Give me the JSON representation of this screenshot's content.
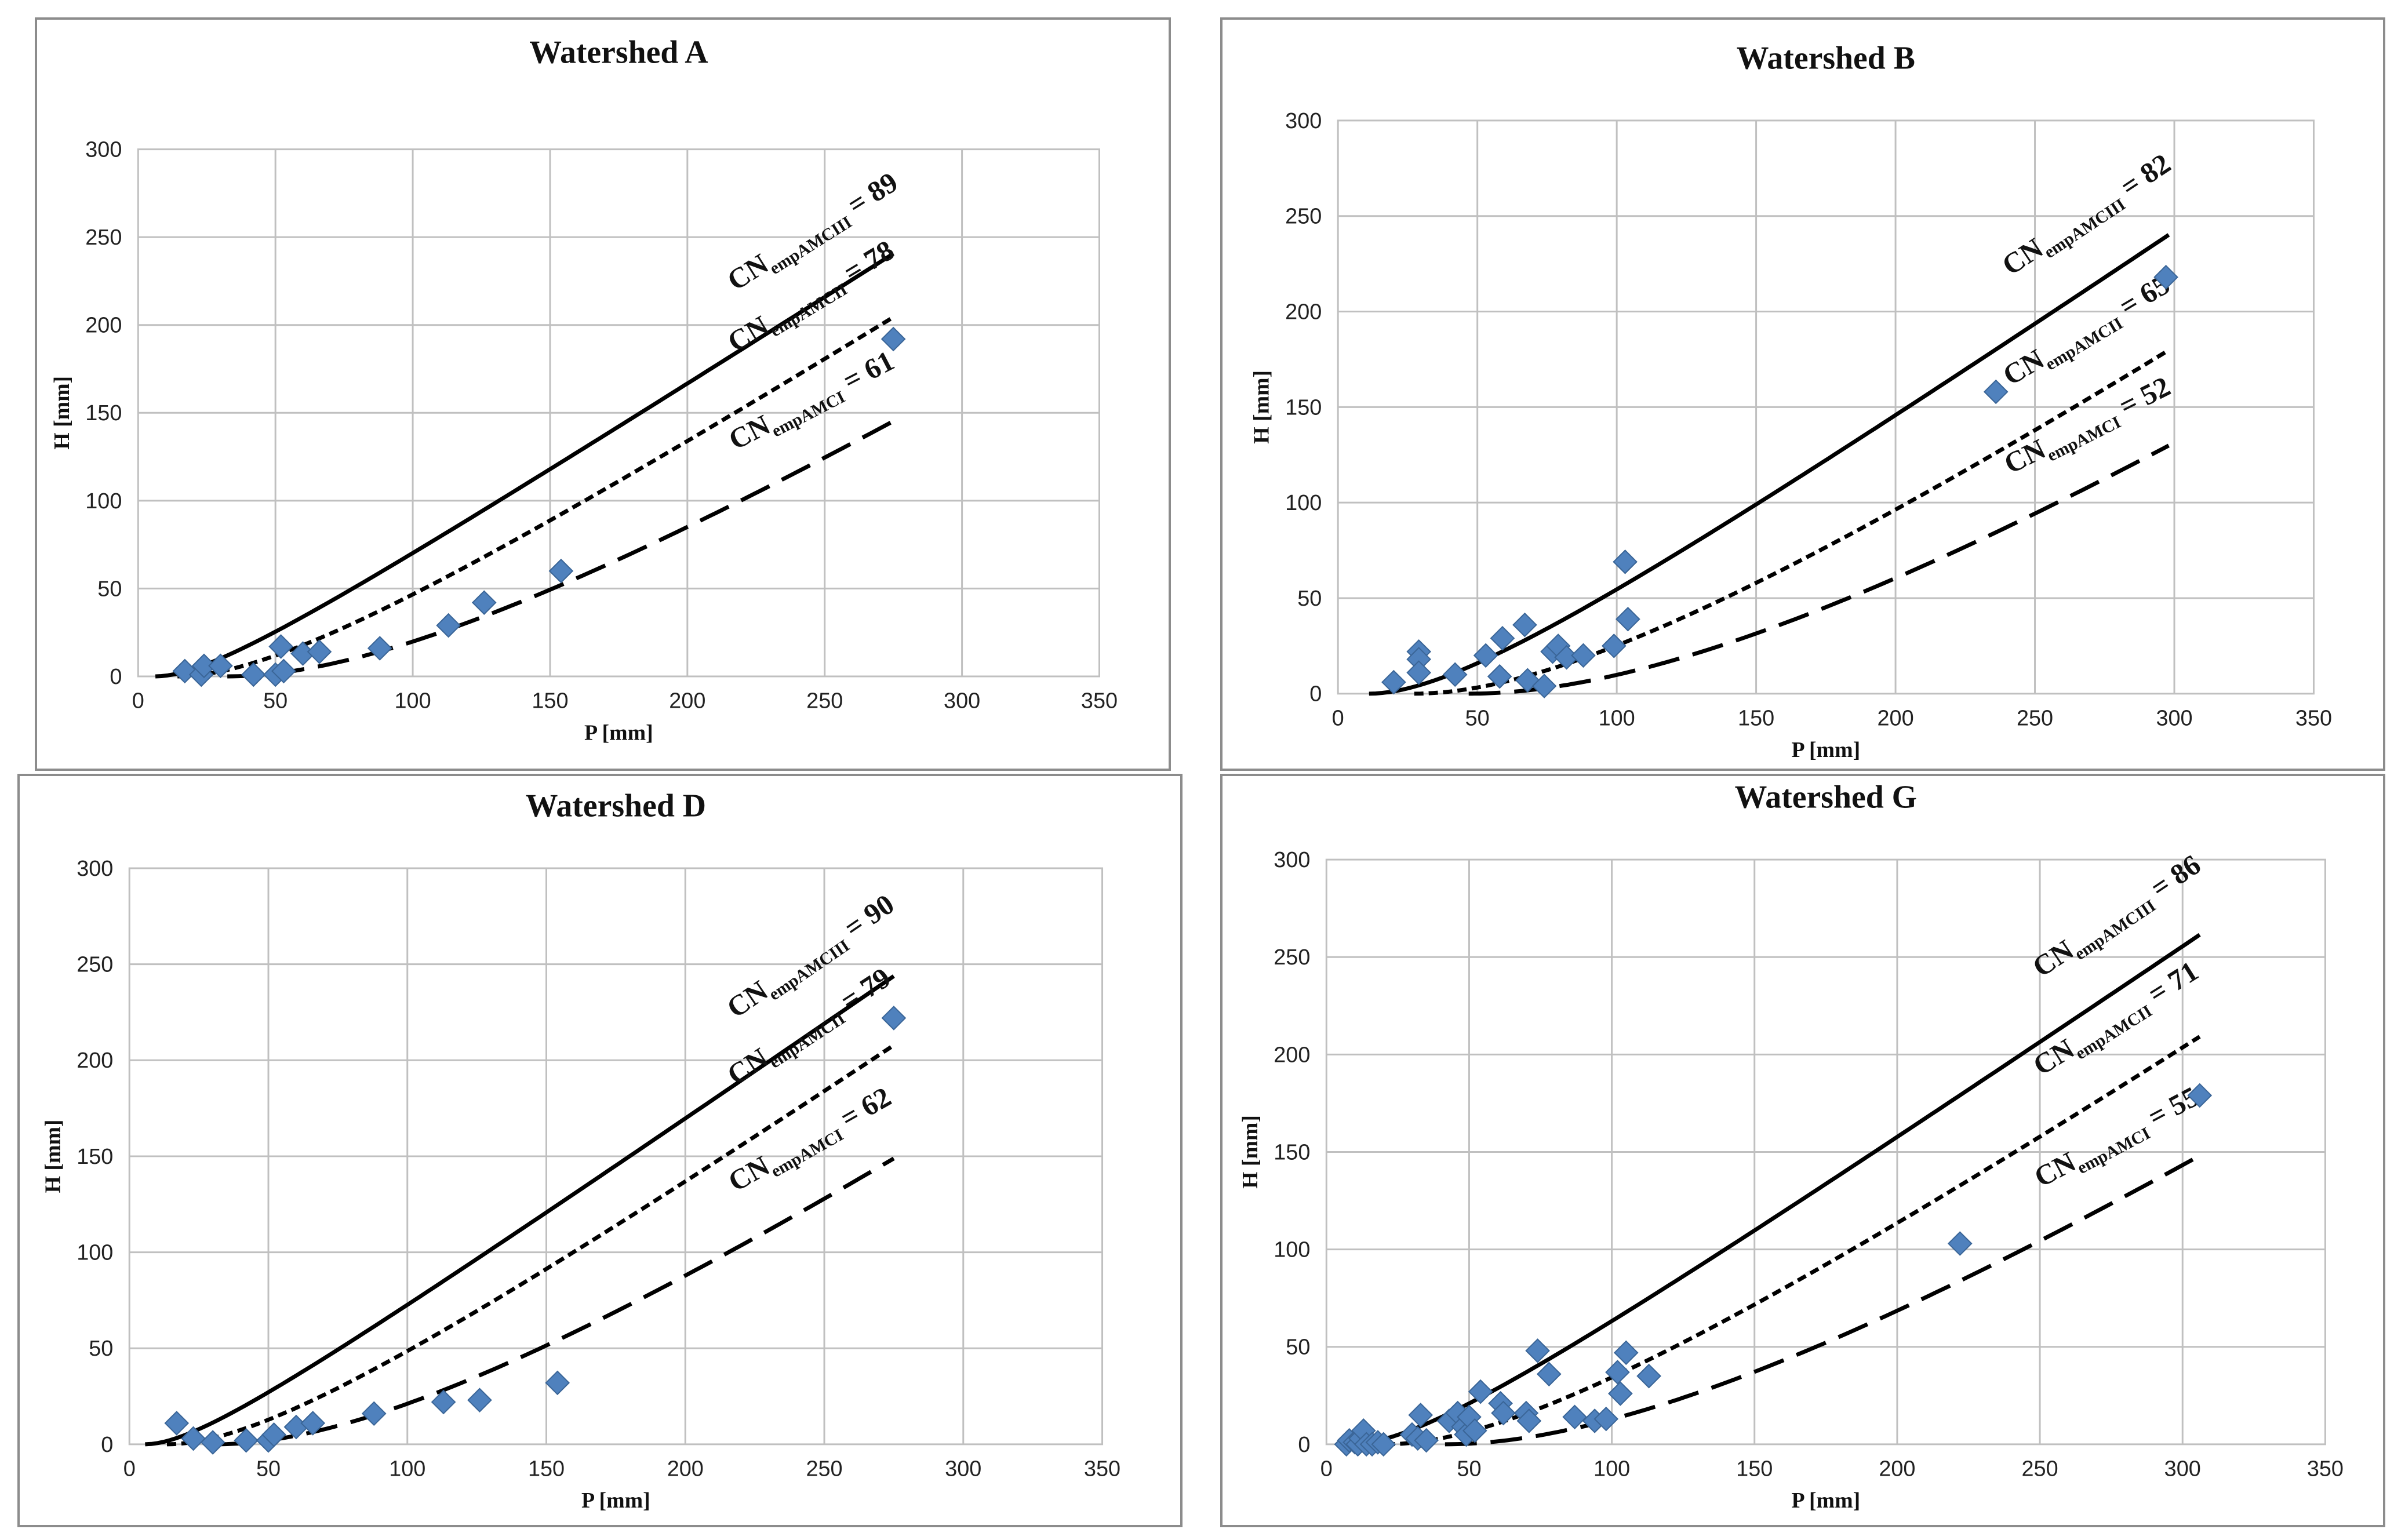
{
  "colors": {
    "marker": "#4f81bd",
    "grid": "#c0c0c0",
    "curve": "#000000",
    "frame": "#8c8c8c"
  },
  "chart_data": [
    {
      "id": "A",
      "type": "scatter",
      "title": "Watershed A",
      "xlabel": "P [mm]",
      "ylabel": "H [mm]",
      "xlim": [
        0,
        350
      ],
      "ylim": [
        0,
        300
      ],
      "xticks": [
        "0",
        "50",
        "100",
        "150",
        "200",
        "250",
        "300",
        "350"
      ],
      "yticks": [
        "0",
        "50",
        "100",
        "150",
        "200",
        "250",
        "300"
      ],
      "grid": true,
      "points": [
        {
          "x": 17,
          "y": 3
        },
        {
          "x": 23,
          "y": 1
        },
        {
          "x": 24,
          "y": 6
        },
        {
          "x": 30,
          "y": 6
        },
        {
          "x": 42,
          "y": 1
        },
        {
          "x": 50,
          "y": 1
        },
        {
          "x": 52,
          "y": 17
        },
        {
          "x": 53,
          "y": 3
        },
        {
          "x": 60,
          "y": 13
        },
        {
          "x": 66,
          "y": 14
        },
        {
          "x": 88,
          "y": 16
        },
        {
          "x": 113,
          "y": 29
        },
        {
          "x": 126,
          "y": 42
        },
        {
          "x": 154,
          "y": 60
        },
        {
          "x": 275,
          "y": 192
        }
      ],
      "curves": [
        {
          "name": "CNempAMCIII = 89",
          "prefix": "CN",
          "sub": "empAMCIII",
          "suffix": " = 89",
          "cn": 89,
          "style": "solid",
          "x_end": 275
        },
        {
          "name": "CNempAMCII = 78",
          "prefix": "CN",
          "sub": "empAMCII",
          "suffix": " = 78",
          "cn": 78,
          "style": "dotted",
          "x_end": 275
        },
        {
          "name": "CNempAMCI = 61",
          "prefix": "CN",
          "sub": "empAMCI",
          "suffix": " = 61",
          "cn": 61,
          "style": "dashed",
          "x_end": 275
        }
      ]
    },
    {
      "id": "B",
      "type": "scatter",
      "title": "Watershed B",
      "xlabel": "P [mm]",
      "ylabel": "H [mm]",
      "xlim": [
        0,
        350
      ],
      "ylim": [
        0,
        300
      ],
      "xticks": [
        "0",
        "50",
        "100",
        "150",
        "200",
        "250",
        "300",
        "350"
      ],
      "yticks": [
        "0",
        "50",
        "100",
        "150",
        "200",
        "250",
        "300"
      ],
      "grid": true,
      "points": [
        {
          "x": 20,
          "y": 6
        },
        {
          "x": 29,
          "y": 22
        },
        {
          "x": 29,
          "y": 18
        },
        {
          "x": 29,
          "y": 11
        },
        {
          "x": 42,
          "y": 10
        },
        {
          "x": 53,
          "y": 20
        },
        {
          "x": 58,
          "y": 9
        },
        {
          "x": 59,
          "y": 29
        },
        {
          "x": 67,
          "y": 36
        },
        {
          "x": 68,
          "y": 7
        },
        {
          "x": 74,
          "y": 4
        },
        {
          "x": 77,
          "y": 22
        },
        {
          "x": 79,
          "y": 25
        },
        {
          "x": 82,
          "y": 19
        },
        {
          "x": 88,
          "y": 20
        },
        {
          "x": 99,
          "y": 25
        },
        {
          "x": 103,
          "y": 69
        },
        {
          "x": 104,
          "y": 39
        },
        {
          "x": 236,
          "y": 158
        },
        {
          "x": 297,
          "y": 218
        }
      ],
      "curves": [
        {
          "name": "CNempAMCIII = 82",
          "prefix": "CN",
          "sub": "empAMCIII",
          "suffix": " = 82",
          "cn": 82,
          "style": "solid",
          "x_end": 298
        },
        {
          "name": "CNempAMCII = 65",
          "prefix": "CN",
          "sub": "empAMCII",
          "suffix": " = 65",
          "cn": 65,
          "style": "dotted",
          "x_end": 298
        },
        {
          "name": "CNempAMCI = 52",
          "prefix": "CN",
          "sub": "empAMCI",
          "suffix": " = 52",
          "cn": 52,
          "style": "dashed",
          "x_end": 298
        }
      ]
    },
    {
      "id": "D",
      "type": "scatter",
      "title": "Watershed D",
      "xlabel": "P [mm]",
      "ylabel": "H [mm]",
      "xlim": [
        0,
        350
      ],
      "ylim": [
        0,
        300
      ],
      "xticks": [
        "0",
        "50",
        "100",
        "150",
        "200",
        "250",
        "300",
        "350"
      ],
      "yticks": [
        "0",
        "50",
        "100",
        "150",
        "200",
        "250",
        "300"
      ],
      "grid": true,
      "points": [
        {
          "x": 17,
          "y": 11
        },
        {
          "x": 23,
          "y": 3
        },
        {
          "x": 30,
          "y": 1
        },
        {
          "x": 42,
          "y": 2
        },
        {
          "x": 50,
          "y": 2
        },
        {
          "x": 52,
          "y": 5
        },
        {
          "x": 60,
          "y": 9
        },
        {
          "x": 66,
          "y": 11
        },
        {
          "x": 88,
          "y": 16
        },
        {
          "x": 113,
          "y": 22
        },
        {
          "x": 126,
          "y": 23
        },
        {
          "x": 154,
          "y": 32
        },
        {
          "x": 275,
          "y": 222
        }
      ],
      "curves": [
        {
          "name": "CNempAMCIII = 90",
          "prefix": "CN",
          "sub": "empAMCIII",
          "suffix": " = 90",
          "cn": 90,
          "style": "solid",
          "x_end": 275
        },
        {
          "name": "CNempAMCII = 79",
          "prefix": "CN",
          "sub": "empAMCII",
          "suffix": " = 79",
          "cn": 79,
          "style": "dotted",
          "x_end": 275
        },
        {
          "name": "CNempAMCI = 62",
          "prefix": "CN",
          "sub": "empAMCI",
          "suffix": " = 62",
          "cn": 62,
          "style": "dashed",
          "x_end": 275
        }
      ]
    },
    {
      "id": "G",
      "type": "scatter",
      "title": "Watershed G",
      "xlabel": "P [mm]",
      "ylabel": "H [mm]",
      "xlim": [
        0,
        350
      ],
      "ylim": [
        0,
        300
      ],
      "xticks": [
        "0",
        "50",
        "100",
        "150",
        "200",
        "250",
        "300",
        "350"
      ],
      "yticks": [
        "0",
        "50",
        "100",
        "150",
        "200",
        "250",
        "300"
      ],
      "grid": true,
      "points": [
        {
          "x": 7,
          "y": 0
        },
        {
          "x": 8,
          "y": 2
        },
        {
          "x": 10,
          "y": 1
        },
        {
          "x": 11,
          "y": 0
        },
        {
          "x": 12,
          "y": 3
        },
        {
          "x": 13,
          "y": 7
        },
        {
          "x": 14,
          "y": 0
        },
        {
          "x": 16,
          "y": 0
        },
        {
          "x": 18,
          "y": 1
        },
        {
          "x": 20,
          "y": 0
        },
        {
          "x": 30,
          "y": 5
        },
        {
          "x": 32,
          "y": 3
        },
        {
          "x": 33,
          "y": 15
        },
        {
          "x": 35,
          "y": 2
        },
        {
          "x": 43,
          "y": 12
        },
        {
          "x": 46,
          "y": 16
        },
        {
          "x": 48,
          "y": 9
        },
        {
          "x": 49,
          "y": 5
        },
        {
          "x": 50,
          "y": 14
        },
        {
          "x": 52,
          "y": 7
        },
        {
          "x": 54,
          "y": 27
        },
        {
          "x": 61,
          "y": 21
        },
        {
          "x": 62,
          "y": 16
        },
        {
          "x": 70,
          "y": 16
        },
        {
          "x": 71,
          "y": 12
        },
        {
          "x": 74,
          "y": 48
        },
        {
          "x": 78,
          "y": 36
        },
        {
          "x": 87,
          "y": 14
        },
        {
          "x": 94,
          "y": 12
        },
        {
          "x": 98,
          "y": 13
        },
        {
          "x": 102,
          "y": 37
        },
        {
          "x": 103,
          "y": 26
        },
        {
          "x": 105,
          "y": 47
        },
        {
          "x": 113,
          "y": 35
        },
        {
          "x": 222,
          "y": 103
        },
        {
          "x": 306,
          "y": 179
        }
      ],
      "curves": [
        {
          "name": "CNempAMCIII = 86",
          "prefix": "CN",
          "sub": "empAMCIII",
          "suffix": " = 86",
          "cn": 86,
          "style": "solid",
          "x_end": 306
        },
        {
          "name": "CNempAMCII = 71",
          "prefix": "CN",
          "sub": "empAMCII",
          "suffix": " = 71",
          "cn": 71,
          "style": "dotted",
          "x_end": 306
        },
        {
          "name": "CNempAMCI = 55",
          "prefix": "CN",
          "sub": "empAMCI",
          "suffix": " = 55",
          "cn": 55,
          "style": "dashed",
          "x_end": 306
        }
      ]
    }
  ]
}
